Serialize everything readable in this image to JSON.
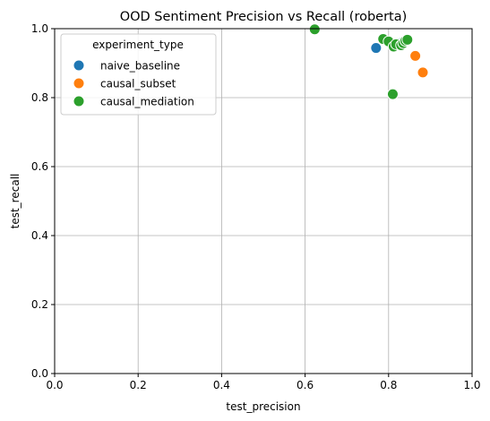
{
  "chart_data": {
    "type": "scatter",
    "title": "OOD Sentiment Precision vs Recall (roberta)",
    "xlabel": "test_precision",
    "ylabel": "test_recall",
    "xlim": [
      0.0,
      1.0
    ],
    "ylim": [
      0.0,
      1.0
    ],
    "xticks": [
      "0.0",
      "0.2",
      "0.4",
      "0.6",
      "0.8",
      "1.0"
    ],
    "yticks": [
      "0.0",
      "0.2",
      "0.4",
      "0.6",
      "0.8",
      "1.0"
    ],
    "grid": true,
    "legend": {
      "title": "experiment_type",
      "placement": "top-left"
    },
    "series": [
      {
        "name": "naive_baseline",
        "color": "#1f77b4",
        "points": [
          {
            "x": 0.77,
            "y": 0.944
          },
          {
            "x": 0.828,
            "y": 0.955
          },
          {
            "x": 0.833,
            "y": 0.96
          }
        ]
      },
      {
        "name": "causal_subset",
        "color": "#ff7f0e",
        "points": [
          {
            "x": 0.864,
            "y": 0.921
          },
          {
            "x": 0.882,
            "y": 0.873
          }
        ]
      },
      {
        "name": "causal_mediation",
        "color": "#2ca02c",
        "points": [
          {
            "x": 0.623,
            "y": 0.998
          },
          {
            "x": 0.787,
            "y": 0.97
          },
          {
            "x": 0.8,
            "y": 0.963
          },
          {
            "x": 0.812,
            "y": 0.948
          },
          {
            "x": 0.818,
            "y": 0.955
          },
          {
            "x": 0.83,
            "y": 0.952
          },
          {
            "x": 0.835,
            "y": 0.958
          },
          {
            "x": 0.84,
            "y": 0.965
          },
          {
            "x": 0.845,
            "y": 0.968
          },
          {
            "x": 0.81,
            "y": 0.81
          }
        ]
      }
    ]
  }
}
